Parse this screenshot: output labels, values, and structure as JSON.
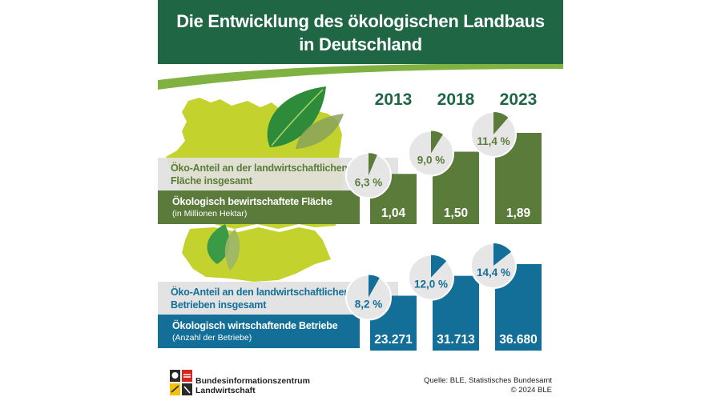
{
  "title": {
    "line1": "Die Entwicklung des ökologischen Landbaus",
    "line2": "in Deutschland"
  },
  "colors": {
    "header": "#1f6644",
    "area": "#5b7b3a",
    "farms": "#136f98",
    "map": "#c4d22e",
    "pie_bg": "#e6e6e6"
  },
  "chart_data": [
    {
      "type": "bar",
      "title": "Ökologisch bewirtschaftete Fläche",
      "ylabel": "(in Millionen Hektar)",
      "categories": [
        "2013",
        "2018",
        "2023"
      ],
      "values": [
        1.04,
        1.5,
        1.89
      ],
      "value_labels": [
        "1,04",
        "1,50",
        "1,89"
      ],
      "ylim": [
        0,
        1.89
      ]
    },
    {
      "type": "pie",
      "title": "Öko-Anteil an der landwirtschaftlichen Fläche insgesamt",
      "categories": [
        "2013",
        "2018",
        "2023"
      ],
      "values": [
        6.3,
        9.0,
        11.4
      ],
      "value_labels": [
        "6,3 %",
        "9,0 %",
        "11,4 %"
      ]
    },
    {
      "type": "bar",
      "title": "Ökologisch wirtschaftende Betriebe",
      "ylabel": "(Anzahl der Betriebe)",
      "categories": [
        "2013",
        "2018",
        "2023"
      ],
      "values": [
        23271,
        31713,
        36680
      ],
      "value_labels": [
        "23.271",
        "31.713",
        "36.680"
      ],
      "ylim": [
        0,
        36680
      ]
    },
    {
      "type": "pie",
      "title": "Öko-Anteil an den landwirtschaftlichen Betrieben insgesamt",
      "categories": [
        "2013",
        "2018",
        "2023"
      ],
      "values": [
        8.2,
        12.0,
        14.4
      ],
      "value_labels": [
        "8,2 %",
        "12,0 %",
        "14,4 %"
      ]
    }
  ],
  "sections": {
    "area": {
      "share_label_line1": "Öko-Anteil an der landwirtschaftlichen",
      "share_label_line2": "Fläche insgesamt",
      "bar_label": "Ökologisch bewirtschaftete Fläche",
      "bar_sublabel": "(in Millionen Hektar)"
    },
    "farms": {
      "share_label_line1": "Öko-Anteil an den landwirtschaftlichen",
      "share_label_line2": "Betrieben insgesamt",
      "bar_label": "Ökologisch wirtschaftende Betriebe",
      "bar_sublabel": "(Anzahl der Betriebe)"
    }
  },
  "footer": {
    "org_line1": "Bundesinformationszentrum",
    "org_line2": "Landwirtschaft",
    "source": "Quelle:  BLE, Statistisches Bundesamt",
    "copyright": "© 2024 BLE"
  }
}
